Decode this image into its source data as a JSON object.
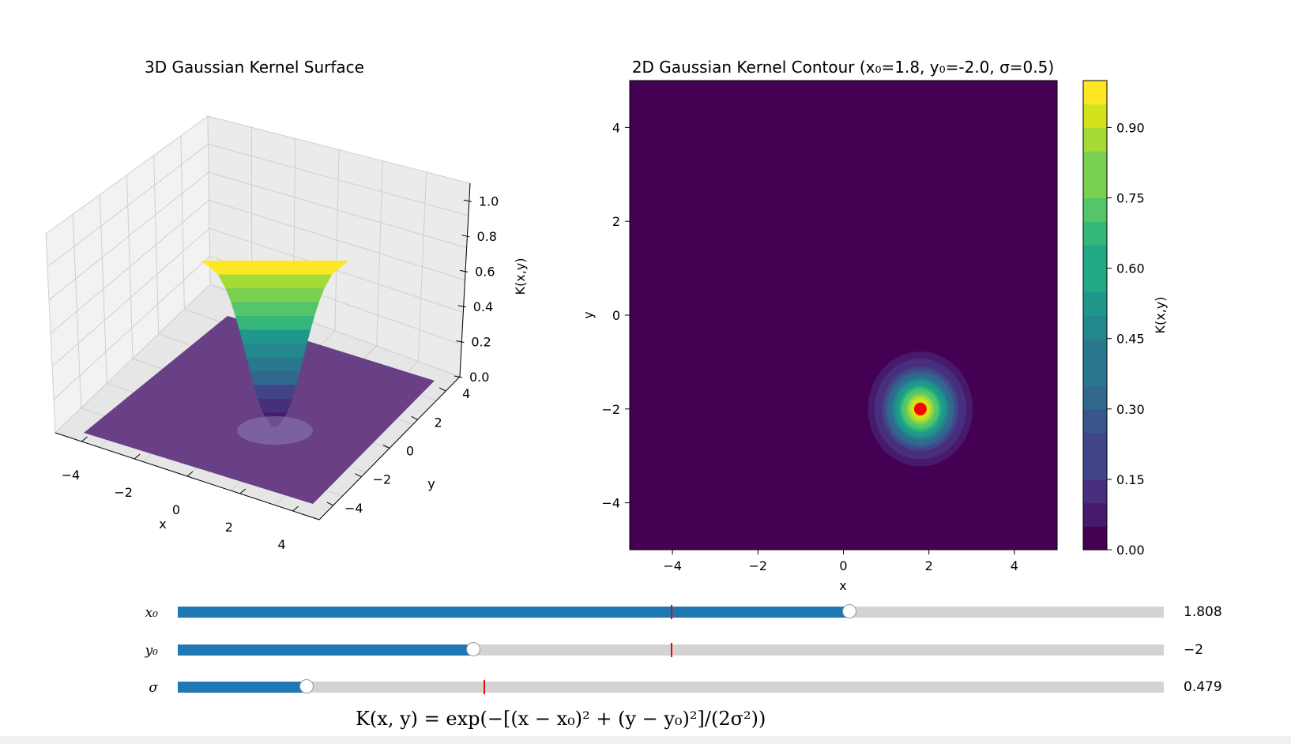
{
  "left_plot": {
    "title": "3D Gaussian Kernel Surface",
    "xlabel": "x",
    "ylabel": "y",
    "zlabel": "K(x,y)",
    "x_ticks": [
      "−4",
      "−2",
      "0",
      "2",
      "4"
    ],
    "y_ticks": [
      "−4",
      "−2",
      "0",
      "2",
      "4"
    ],
    "z_ticks": [
      "0.0",
      "0.2",
      "0.4",
      "0.6",
      "0.8",
      "1.0"
    ]
  },
  "right_plot": {
    "title": "2D Gaussian Kernel Contour (x₀=1.8, y₀=-2.0, σ=0.5)",
    "xlabel": "x",
    "ylabel": "y",
    "x_ticks": [
      "−4",
      "−2",
      "0",
      "2",
      "4"
    ],
    "y_ticks": [
      "4",
      "2",
      "0",
      "−2",
      "−4"
    ],
    "colorbar_label": "K(x,y)",
    "colorbar_ticks": [
      "0.00",
      "0.15",
      "0.30",
      "0.45",
      "0.60",
      "0.75",
      "0.90"
    ]
  },
  "sliders": [
    {
      "label": "x₀",
      "value_text": "1.808",
      "value": 1.808,
      "min": -5,
      "max": 5,
      "init": 0
    },
    {
      "label": "y₀",
      "value_text": "−2",
      "value": -2,
      "min": -5,
      "max": 5,
      "init": 0
    },
    {
      "label": "σ",
      "value_text": "0.479",
      "value": 0.479,
      "min": 0.1,
      "max": 3,
      "init": 1
    }
  ],
  "formula_text": "K(x, y) = exp(−[(x − x₀)² + (y − y₀)²]/(2σ²))",
  "colors": {
    "slider_fill": "#1f77b4",
    "slider_track": "#d3d3d3",
    "init_marker": "#ff0000",
    "center_marker": "#ff0000",
    "background_level": "#440154"
  },
  "chart_data": [
    {
      "type": "surface",
      "title": "3D Gaussian Kernel Surface",
      "xlabel": "x",
      "ylabel": "y",
      "zlabel": "K(x,y)",
      "xlim": [
        -5,
        5
      ],
      "ylim": [
        -5,
        5
      ],
      "zlim": [
        0,
        1.1
      ],
      "center": [
        1.8,
        -2.0
      ],
      "sigma": 0.5,
      "peak": 1.0,
      "colormap": "viridis"
    },
    {
      "type": "contour",
      "title": "2D Gaussian Kernel Contour (x₀=1.8, y₀=-2.0, σ=0.5)",
      "xlabel": "x",
      "ylabel": "y",
      "xlim": [
        -5,
        5
      ],
      "ylim": [
        -5,
        5
      ],
      "center": [
        1.8,
        -2.0
      ],
      "sigma": 0.5,
      "levels": [
        0,
        0.05,
        0.1,
        0.15,
        0.2,
        0.25,
        0.3,
        0.35,
        0.4,
        0.45,
        0.5,
        0.55,
        0.6,
        0.65,
        0.7,
        0.75,
        0.8,
        0.85,
        0.9,
        0.95,
        1.0
      ],
      "colorbar": {
        "label": "K(x,y)",
        "range": [
          0,
          1.0
        ],
        "ticks": [
          0,
          0.15,
          0.3,
          0.45,
          0.6,
          0.75,
          0.9
        ]
      },
      "colormap": "viridis"
    }
  ]
}
